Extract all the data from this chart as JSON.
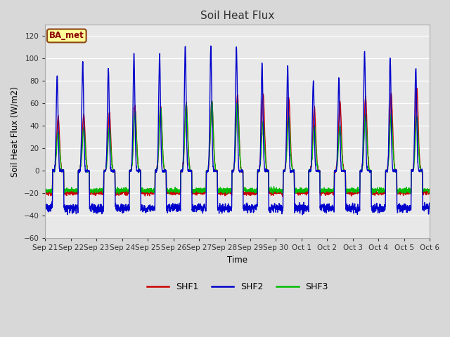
{
  "title": "Soil Heat Flux",
  "ylabel": "Soil Heat Flux (W/m2)",
  "xlabel": "Time",
  "ylim": [
    -60,
    130
  ],
  "yticks": [
    -60,
    -40,
    -20,
    0,
    20,
    40,
    60,
    80,
    100,
    120
  ],
  "xtick_labels": [
    "Sep 21",
    "Sep 22",
    "Sep 23",
    "Sep 24",
    "Sep 25",
    "Sep 26",
    "Sep 27",
    "Sep 28",
    "Sep 29",
    "Sep 30",
    "Oct 1",
    "Oct 2",
    "Oct 3",
    "Oct 4",
    "Oct 5",
    "Oct 6"
  ],
  "line_colors": {
    "SHF1": "#cc0000",
    "SHF2": "#0000cc",
    "SHF3": "#00bb00"
  },
  "line_width": 1.0,
  "background_color": "#d8d8d8",
  "plot_bg_color": "#d0d0d0",
  "inner_bg_color": "#e8e8e8",
  "annotation_text": "BA_met",
  "annotation_bg": "#ffff99",
  "annotation_border": "#8B4513",
  "annotation_text_color": "#8B0000",
  "num_days": 15,
  "pts_per_day": 288,
  "shf2_peaks": [
    84,
    96,
    90,
    103,
    104,
    111,
    110,
    110,
    95,
    93,
    81,
    83,
    107,
    101,
    93
  ],
  "shf1_peaks": [
    48,
    50,
    51,
    57,
    58,
    60,
    62,
    68,
    68,
    66,
    57,
    62,
    66,
    69,
    74
  ],
  "shf3_peaks": [
    35,
    38,
    38,
    52,
    56,
    60,
    62,
    62,
    45,
    47,
    40,
    40,
    50,
    50,
    48
  ],
  "shf2_night": -38,
  "shf1_night": -22,
  "shf3_night": -20
}
